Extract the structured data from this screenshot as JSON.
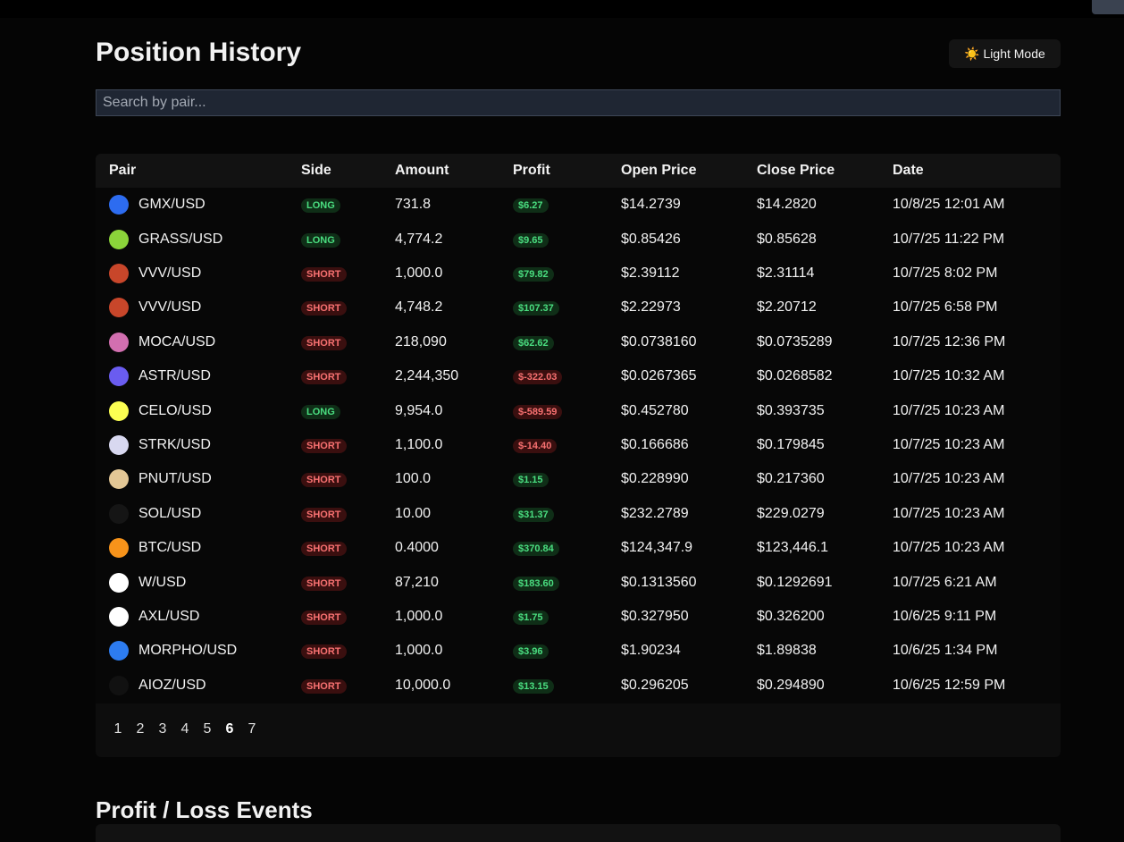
{
  "header": {
    "title": "Position History",
    "theme_button": "☀️ Light Mode"
  },
  "search": {
    "placeholder": "Search by pair..."
  },
  "table": {
    "columns": [
      "Pair",
      "Side",
      "Amount",
      "Profit",
      "Open Price",
      "Close Price",
      "Date"
    ],
    "rows": [
      [
        "GMX/USD",
        "LONG",
        "731.8",
        "$6.27",
        "$14.2739",
        "$14.2820",
        "10/8/25 12:01 AM"
      ],
      [
        "GRASS/USD",
        "LONG",
        "4,774.2",
        "$9.65",
        "$0.85426",
        "$0.85628",
        "10/7/25 11:22 PM"
      ],
      [
        "VVV/USD",
        "SHORT",
        "1,000.0",
        "$79.82",
        "$2.39112",
        "$2.31114",
        "10/7/25 8:02 PM"
      ],
      [
        "VVV/USD",
        "SHORT",
        "4,748.2",
        "$107.37",
        "$2.22973",
        "$2.20712",
        "10/7/25 6:58 PM"
      ],
      [
        "MOCA/USD",
        "SHORT",
        "218,090",
        "$62.62",
        "$0.0738160",
        "$0.0735289",
        "10/7/25 12:36 PM"
      ],
      [
        "ASTR/USD",
        "SHORT",
        "2,244,350",
        "$-322.03",
        "$0.0267365",
        "$0.0268582",
        "10/7/25 10:32 AM"
      ],
      [
        "CELO/USD",
        "LONG",
        "9,954.0",
        "$-589.59",
        "$0.452780",
        "$0.393735",
        "10/7/25 10:23 AM"
      ],
      [
        "STRK/USD",
        "SHORT",
        "1,100.0",
        "$-14.40",
        "$0.166686",
        "$0.179845",
        "10/7/25 10:23 AM"
      ],
      [
        "PNUT/USD",
        "SHORT",
        "100.0",
        "$1.15",
        "$0.228990",
        "$0.217360",
        "10/7/25 10:23 AM"
      ],
      [
        "SOL/USD",
        "SHORT",
        "10.00",
        "$31.37",
        "$232.2789",
        "$229.0279",
        "10/7/25 10:23 AM"
      ],
      [
        "BTC/USD",
        "SHORT",
        "0.4000",
        "$370.84",
        "$124,347.9",
        "$123,446.1",
        "10/7/25 10:23 AM"
      ],
      [
        "W/USD",
        "SHORT",
        "87,210",
        "$183.60",
        "$0.1313560",
        "$0.1292691",
        "10/7/25 6:21 AM"
      ],
      [
        "AXL/USD",
        "SHORT",
        "1,000.0",
        "$1.75",
        "$0.327950",
        "$0.326200",
        "10/6/25 9:11 PM"
      ],
      [
        "MORPHO/USD",
        "SHORT",
        "1,000.0",
        "$3.96",
        "$1.90234",
        "$1.89838",
        "10/6/25 1:34 PM"
      ],
      [
        "AIOZ/USD",
        "SHORT",
        "10,000.0",
        "$13.15",
        "$0.296205",
        "$0.294890",
        "10/6/25 12:59 PM"
      ]
    ]
  },
  "pagination": {
    "pages": [
      {
        "label": "1"
      },
      {
        "label": "2"
      },
      {
        "label": "3"
      },
      {
        "label": "4"
      },
      {
        "label": "5"
      },
      {
        "label": "6",
        "active": true
      },
      {
        "label": "7"
      }
    ]
  },
  "section2": {
    "title": "Profit / Loss Events"
  }
}
